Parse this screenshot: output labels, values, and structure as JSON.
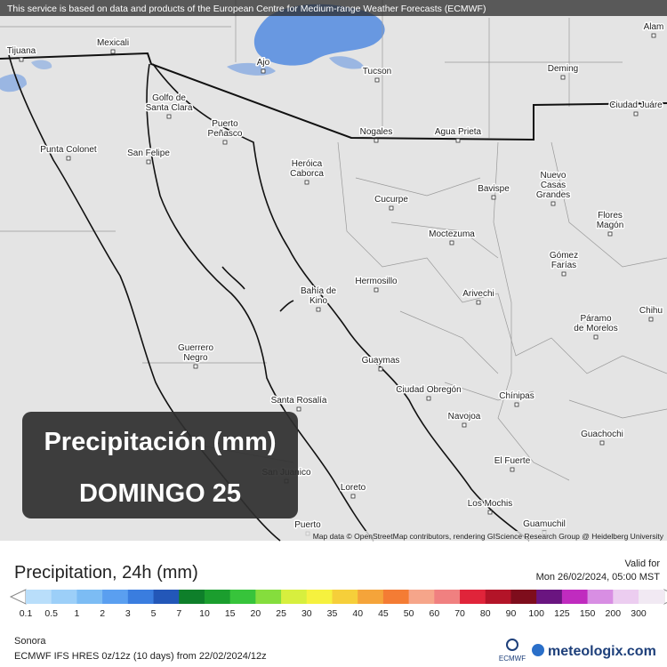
{
  "banner": "This service is based on data and products of the European Centre for Medium-range Weather Forecasts (ECMWF)",
  "attribution": "Map data © OpenStreetMap contributors, rendering GIScience Research Group @ Heidelberg University",
  "overlay": {
    "title": "Precipitación (mm)",
    "day": "DOMINGO 25"
  },
  "cities": [
    [
      "Tijuana"
    ],
    [
      "Mexicali"
    ],
    [
      "Ajo"
    ],
    [
      "Tucson"
    ],
    [
      "Deming"
    ],
    [
      "Alam"
    ],
    [
      "Ciudad Juáre"
    ],
    [
      "Golfo de",
      "Santa Clara"
    ],
    [
      "Puerto",
      "Peñasco"
    ],
    [
      "Punta Colonet"
    ],
    [
      "San Felipe"
    ],
    [
      "Heróica",
      "Caborca"
    ],
    [
      "Nogales"
    ],
    [
      "Agua Prieta"
    ],
    [
      "Bavispe"
    ],
    [
      "Nuevo",
      "Casas",
      "Grandes"
    ],
    [
      "Cucurpe"
    ],
    [
      "Flores",
      "Magón"
    ],
    [
      "Moctezuma"
    ],
    [
      "Gómez",
      "Farías"
    ],
    [
      "Hermosillo"
    ],
    [
      "Bahía de",
      "Kino"
    ],
    [
      "Arivechi"
    ],
    [
      "Chihu"
    ],
    [
      "Páramo",
      "de Morelos"
    ],
    [
      "Guerrero",
      "Negro"
    ],
    [
      "Guaymas"
    ],
    [
      "Ciudad Obregón"
    ],
    [
      "Chínipas"
    ],
    [
      "Santa Rosalía"
    ],
    [
      "Navojoa"
    ],
    [
      "Guachochi"
    ],
    [
      "El Fuerte"
    ],
    [
      "San Juanico"
    ],
    [
      "Loreto"
    ],
    [
      "Los Mochis"
    ],
    [
      "Guamuchil"
    ],
    [
      "Puerto"
    ]
  ],
  "legend": {
    "title": "Precipitation, 24h (mm)",
    "valid_label": "Valid for",
    "valid_time": "Mon 26/02/2024, 05:00 MST",
    "labels": [
      "0.1",
      "0.5",
      "1",
      "2",
      "3",
      "5",
      "7",
      "10",
      "15",
      "20",
      "25",
      "30",
      "35",
      "40",
      "45",
      "50",
      "60",
      "70",
      "80",
      "90",
      "100",
      "125",
      "150",
      "200",
      "300"
    ],
    "colors": [
      "#b9defa",
      "#9ccff8",
      "#7cbcf4",
      "#5a9ff0",
      "#3a7ddf",
      "#2357b8",
      "#0e7f2a",
      "#1b9e2e",
      "#37c43b",
      "#85dd3d",
      "#d7ef3e",
      "#f6f13e",
      "#f6cf3a",
      "#f5a43a",
      "#f47c34",
      "#f6a58a",
      "#f08080",
      "#e0243a",
      "#b31428",
      "#7e0d1c",
      "#6a1580",
      "#c02bbf",
      "#d88ee3",
      "#eccdf0",
      "#f1e9f3"
    ]
  },
  "footer": {
    "region": "Sonora",
    "model": "ECMWF IFS HRES 0z/12z (10 days) from 22/02/2024/12z",
    "ecmwf": "ECMWF",
    "brand": "meteologix.com"
  }
}
